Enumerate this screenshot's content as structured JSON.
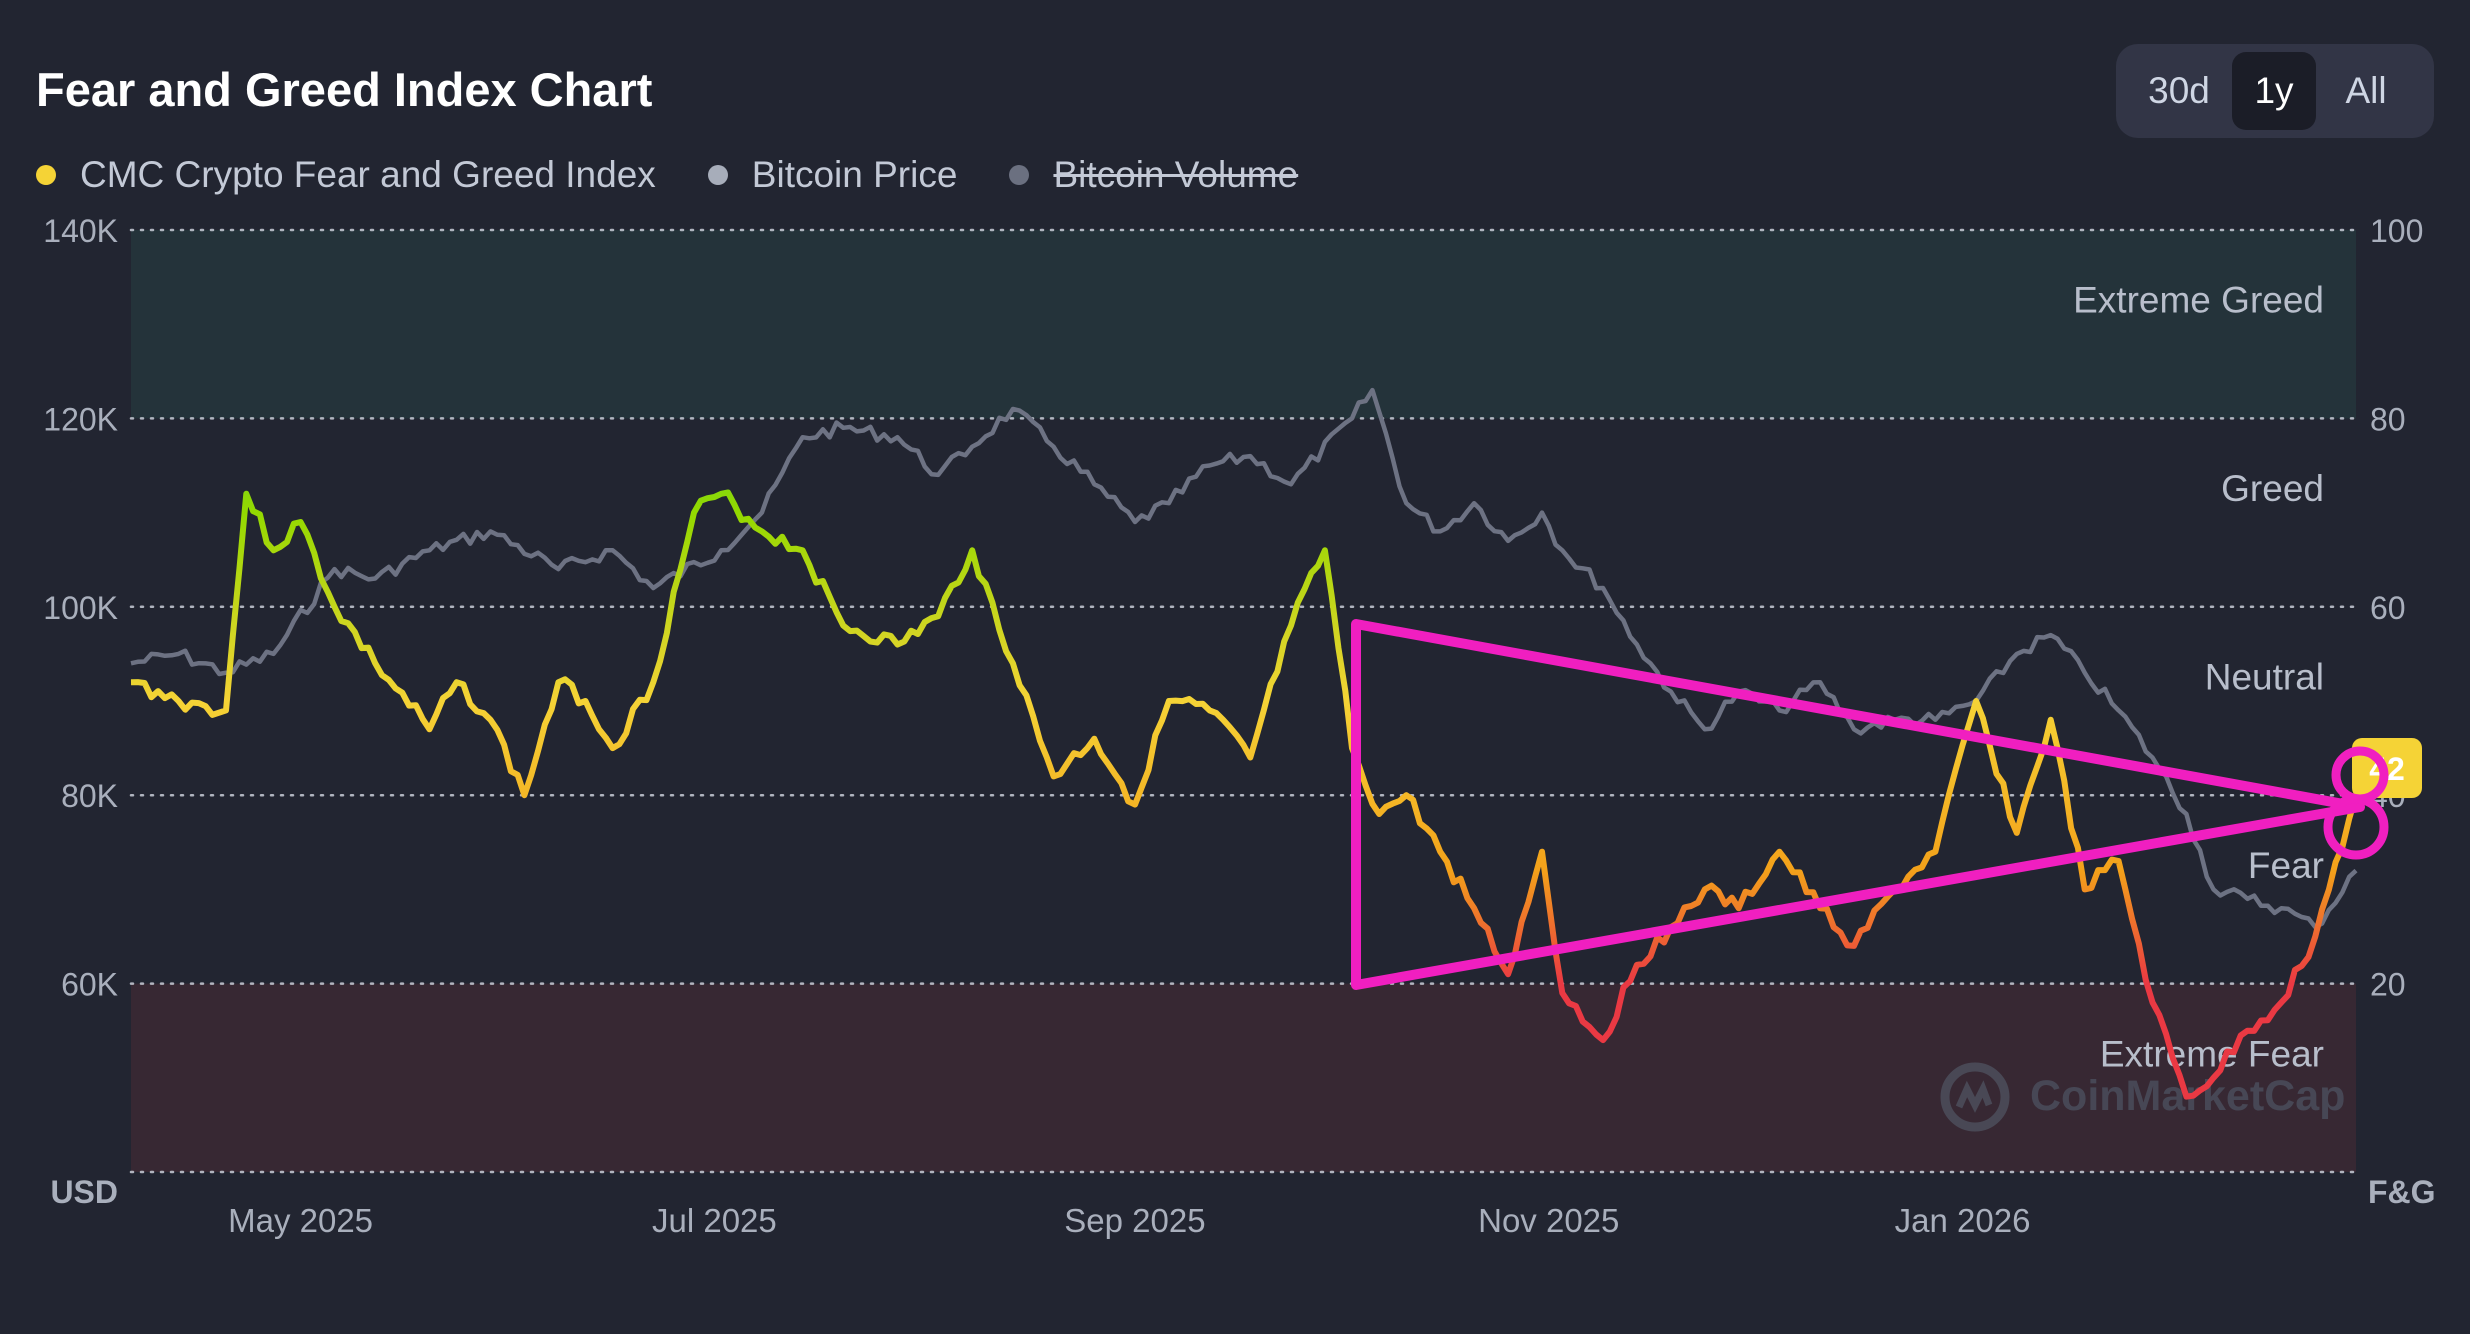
{
  "title": "Fear and Greed Index Chart",
  "ranges": [
    {
      "label": "30d",
      "active": false
    },
    {
      "label": "1y",
      "active": true
    },
    {
      "label": "All",
      "active": false
    }
  ],
  "legend": [
    {
      "label": "CMC Crypto Fear and Greed Index",
      "color": "#f5d336",
      "disabled": false
    },
    {
      "label": "Bitcoin Price",
      "color": "#a7adba",
      "disabled": false
    },
    {
      "label": "Bitcoin Volume",
      "color": "#6b7080",
      "disabled": true
    }
  ],
  "colors": {
    "background": "#222531",
    "extreme_greed_band": "#24333a",
    "extreme_fear_band": "#372833",
    "price_line": "#6d7283",
    "annotation": "#f01fc0",
    "current_badge": "#f5d336",
    "grid": "#c9ced8"
  },
  "watermark": "CoinMarketCap",
  "current_value_badge": "42",
  "chart_data": {
    "type": "line",
    "x_axis": {
      "labels": [
        "May 2025",
        "Jul 2025",
        "Sep 2025",
        "Nov 2025",
        "Jan 2026"
      ],
      "start": "2025-04-06",
      "end": "2026-02-28"
    },
    "y_left": {
      "unit_label": "USD",
      "ticks": [
        "140K",
        "120K",
        "100K",
        "80K",
        "60K"
      ],
      "ylim": [
        40000,
        140000
      ]
    },
    "y_right": {
      "unit_label": "F&G",
      "ticks": [
        "100",
        "80",
        "60",
        "40",
        "20"
      ],
      "ylim": [
        0,
        100
      ]
    },
    "zones": [
      {
        "label": "Extreme Greed",
        "from": 80,
        "to": 100
      },
      {
        "label": "Greed",
        "from": 60,
        "to": 80
      },
      {
        "label": "Neutral",
        "from": 40,
        "to": 60
      },
      {
        "label": "Fear",
        "from": 20,
        "to": 40
      },
      {
        "label": "Extreme Fear",
        "from": 0,
        "to": 20
      }
    ],
    "series": [
      {
        "name": "CMC Crypto Fear and Greed Index",
        "axis": "right",
        "x": [
          "2025-04-06",
          "2025-04-13",
          "2025-04-20",
          "2025-04-23",
          "2025-04-27",
          "2025-05-01",
          "2025-05-06",
          "2025-05-12",
          "2025-05-20",
          "2025-05-24",
          "2025-05-29",
          "2025-06-03",
          "2025-06-08",
          "2025-06-12",
          "2025-06-16",
          "2025-06-22",
          "2025-06-28",
          "2025-07-02",
          "2025-07-08",
          "2025-07-14",
          "2025-07-20",
          "2025-07-28",
          "2025-08-03",
          "2025-08-08",
          "2025-08-14",
          "2025-08-20",
          "2025-08-26",
          "2025-09-01",
          "2025-09-06",
          "2025-09-12",
          "2025-09-18",
          "2025-09-24",
          "2025-09-29",
          "2025-10-03",
          "2025-10-07",
          "2025-10-11",
          "2025-10-16",
          "2025-10-21",
          "2025-10-26",
          "2025-10-31",
          "2025-11-03",
          "2025-11-09",
          "2025-11-14",
          "2025-11-19",
          "2025-11-24",
          "2025-11-29",
          "2025-12-05",
          "2025-12-11",
          "2025-12-16",
          "2025-12-22",
          "2025-12-28",
          "2026-01-03",
          "2026-01-09",
          "2026-01-14",
          "2026-01-19",
          "2026-01-24",
          "2026-01-29",
          "2026-02-03",
          "2026-02-07",
          "2026-02-12",
          "2026-02-17",
          "2026-02-22",
          "2026-02-28"
        ],
        "values": [
          52,
          50,
          49,
          72,
          66,
          69,
          60,
          54,
          47,
          52,
          48,
          40,
          52,
          50,
          45,
          52,
          70,
          72,
          68,
          66,
          58,
          56,
          59,
          66,
          54,
          42,
          46,
          39,
          50,
          49,
          44,
          58,
          66,
          45,
          38,
          40,
          34,
          28,
          21,
          34,
          19,
          14,
          22,
          26,
          30,
          28,
          34,
          28,
          24,
          30,
          34,
          50,
          36,
          48,
          30,
          33,
          18,
          8,
          10,
          15,
          18,
          25,
          40
        ]
      },
      {
        "name": "Bitcoin Price",
        "axis": "left",
        "x": [
          "2025-04-06",
          "2025-04-13",
          "2025-04-20",
          "2025-04-27",
          "2025-05-06",
          "2025-05-12",
          "2025-05-20",
          "2025-05-29",
          "2025-06-08",
          "2025-06-16",
          "2025-06-22",
          "2025-07-02",
          "2025-07-08",
          "2025-07-14",
          "2025-07-20",
          "2025-07-28",
          "2025-08-03",
          "2025-08-08",
          "2025-08-14",
          "2025-08-20",
          "2025-08-26",
          "2025-09-01",
          "2025-09-06",
          "2025-09-12",
          "2025-09-18",
          "2025-09-24",
          "2025-10-03",
          "2025-10-06",
          "2025-10-11",
          "2025-10-16",
          "2025-10-21",
          "2025-10-26",
          "2025-10-31",
          "2025-11-03",
          "2025-11-09",
          "2025-11-14",
          "2025-11-19",
          "2025-11-24",
          "2025-11-29",
          "2025-12-05",
          "2025-12-11",
          "2025-12-16",
          "2025-12-22",
          "2025-12-28",
          "2026-01-03",
          "2026-01-09",
          "2026-01-14",
          "2026-01-19",
          "2026-01-24",
          "2026-01-29",
          "2026-02-03",
          "2026-02-07",
          "2026-02-12",
          "2026-02-17",
          "2026-02-22",
          "2026-02-28"
        ],
        "values": [
          94000,
          95000,
          93000,
          95000,
          104000,
          103000,
          106000,
          108000,
          104000,
          106000,
          102000,
          106000,
          110000,
          118000,
          119000,
          118000,
          114000,
          117000,
          121000,
          117000,
          113000,
          109000,
          111000,
          115000,
          116000,
          113000,
          120000,
          123000,
          111000,
          108000,
          111000,
          107000,
          110000,
          106000,
          102000,
          96000,
          91000,
          87000,
          91000,
          89000,
          92000,
          87000,
          88000,
          88000,
          90000,
          95000,
          97000,
          93000,
          89000,
          84000,
          78000,
          70000,
          69000,
          68000,
          66000,
          72000
        ]
      }
    ]
  }
}
